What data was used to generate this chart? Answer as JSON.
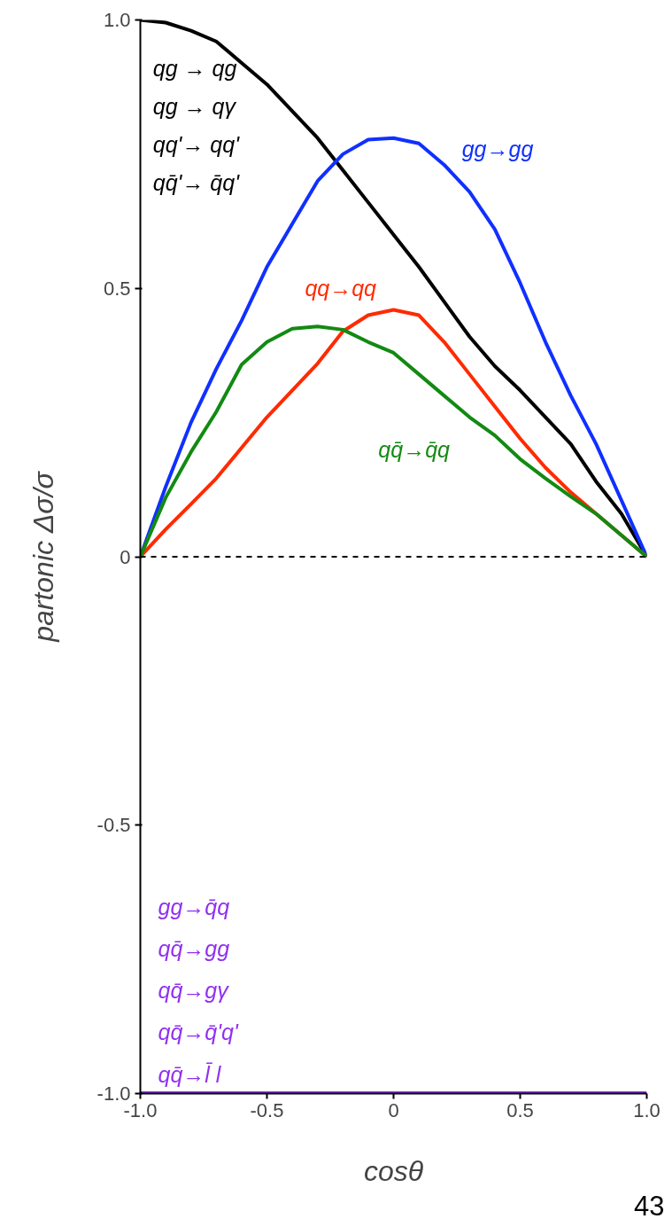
{
  "chart_data": {
    "type": "line",
    "xlabel": "cosθ",
    "ylabel": "partonic Δσ/σ",
    "x": [
      -1.0,
      -0.9,
      -0.8,
      -0.7,
      -0.6,
      -0.5,
      -0.4,
      -0.3,
      -0.2,
      -0.1,
      0.0,
      0.1,
      0.2,
      0.3,
      0.4,
      0.5,
      0.6,
      0.7,
      0.8,
      0.9,
      1.0
    ],
    "series": [
      {
        "name": "qg → qg\nqg → qγ\nqq'→ qq'\nqq̄'→ q̄q'",
        "color": "#000000",
        "values": [
          1.0,
          0.995,
          0.98,
          0.96,
          0.92,
          0.88,
          0.83,
          0.78,
          0.72,
          0.66,
          0.6,
          0.54,
          0.475,
          0.41,
          0.355,
          0.31,
          0.26,
          0.21,
          0.14,
          0.08,
          0.0
        ]
      },
      {
        "name": "gg→gg",
        "color": "#1030ff",
        "values": [
          0.0,
          0.13,
          0.25,
          0.35,
          0.44,
          0.54,
          0.62,
          0.7,
          0.75,
          0.777,
          0.78,
          0.77,
          0.73,
          0.68,
          0.61,
          0.51,
          0.4,
          0.3,
          0.21,
          0.105,
          0.0
        ]
      },
      {
        "name": "qq→qq",
        "color": "#ff2a00",
        "values": [
          0.0,
          0.051,
          0.098,
          0.146,
          0.203,
          0.26,
          0.31,
          0.36,
          0.42,
          0.45,
          0.46,
          0.45,
          0.4,
          0.34,
          0.28,
          0.22,
          0.166,
          0.12,
          0.08,
          0.04,
          0.0
        ]
      },
      {
        "name": "qq̄→q̄q",
        "color": "#128a12",
        "values": [
          0.0,
          0.11,
          0.195,
          0.27,
          0.358,
          0.4,
          0.425,
          0.429,
          0.423,
          0.4,
          0.38,
          0.34,
          0.3,
          0.26,
          0.226,
          0.182,
          0.146,
          0.112,
          0.08,
          0.04,
          0.0
        ]
      },
      {
        "name": "gg→q̄q\nqq̄→gg\nqq̄→gγ\nqq̄→q̄'q'\nqq̄→l̄ l",
        "color": "#9030f0",
        "values": [
          -1.0,
          -1.0,
          -1.0,
          -1.0,
          -1.0,
          -1.0,
          -1.0,
          -1.0,
          -1.0,
          -1.0,
          -1.0,
          -1.0,
          -1.0,
          -1.0,
          -1.0,
          -1.0,
          -1.0,
          -1.0,
          -1.0,
          -1.0,
          -1.0
        ]
      }
    ],
    "xlim": [
      -1.0,
      1.0
    ],
    "ylim": [
      -1.0,
      1.0
    ],
    "xticks": [
      {
        "value": -1.0,
        "label": "-1.0"
      },
      -0.5,
      0,
      0.5,
      {
        "value": 1.0,
        "label": "1.0"
      }
    ],
    "yticks": [
      {
        "value": -1.0,
        "label": "-1.0"
      },
      -0.5,
      0,
      0.5,
      {
        "value": 1.0,
        "label": "1.0"
      }
    ],
    "ref_lines": [
      {
        "axis": "y",
        "value": 0,
        "color": "#000000",
        "line_style": "dashed"
      }
    ],
    "annotations": [
      "43"
    ],
    "grid": false,
    "marker": "none",
    "line_style": "solid"
  }
}
